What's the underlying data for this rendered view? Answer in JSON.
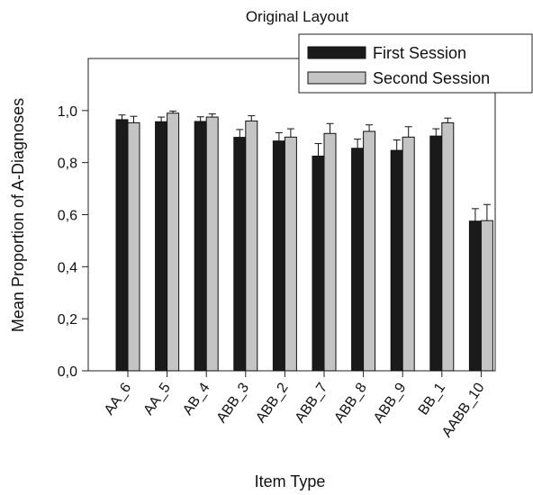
{
  "chart_data": {
    "type": "bar",
    "title": "Original Layout",
    "xlabel": "Item Type",
    "ylabel": "Mean Proportion of A-Diagnoses",
    "categories": [
      "AA_6",
      "AA_5",
      "AB_4",
      "ABB_3",
      "ABB_2",
      "ABB_7",
      "ABB_8",
      "ABB_9",
      "BB_1",
      "AABB_10"
    ],
    "series": [
      {
        "name": "First Session",
        "color": "#1a1a1a",
        "values": [
          0.965,
          0.957,
          0.958,
          0.897,
          0.883,
          0.825,
          0.855,
          0.847,
          0.902,
          0.575
        ],
        "error": [
          0.018,
          0.018,
          0.018,
          0.03,
          0.032,
          0.048,
          0.035,
          0.04,
          0.028,
          0.048
        ]
      },
      {
        "name": "Second Session",
        "color": "#c4c4c4",
        "values": [
          0.953,
          0.99,
          0.975,
          0.96,
          0.898,
          0.912,
          0.92,
          0.898,
          0.953,
          0.577
        ],
        "error": [
          0.025,
          0.008,
          0.012,
          0.02,
          0.032,
          0.038,
          0.025,
          0.04,
          0.018,
          0.062
        ]
      }
    ],
    "ylim": [
      0,
      1.2
    ],
    "yticks": [
      "0,0",
      "0,2",
      "0,4",
      "0,6",
      "0,8",
      "1,0"
    ],
    "ytick_values": [
      0,
      0.2,
      0.4,
      0.6,
      0.8,
      1.0
    ],
    "legend_position": "top-right",
    "grid": false
  }
}
